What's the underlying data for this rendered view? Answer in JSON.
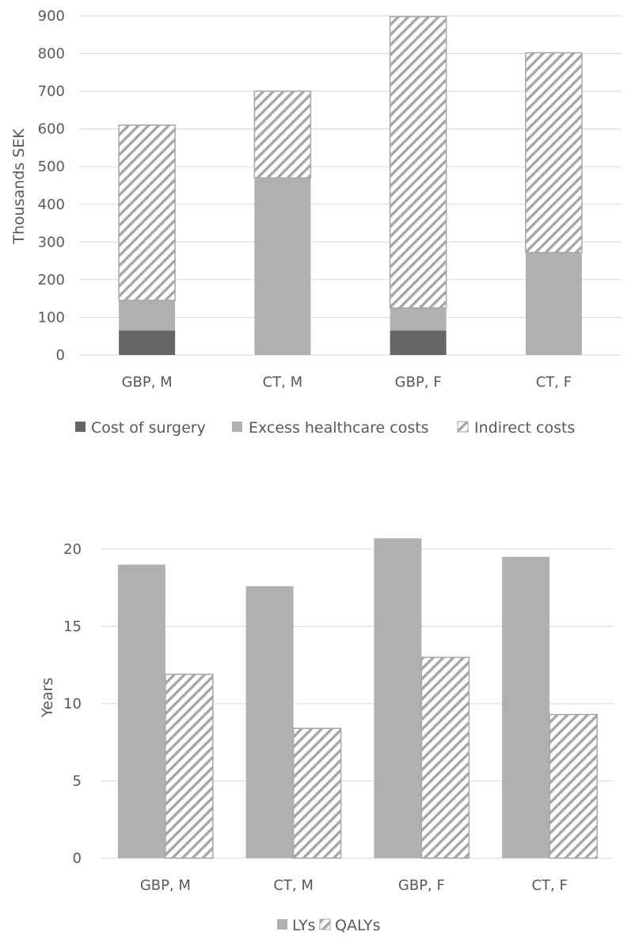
{
  "chart_data": [
    {
      "type": "bar",
      "stacked": true,
      "categories": [
        "GBP, M",
        "CT, M",
        "GBP, F",
        "CT, F"
      ],
      "series": [
        {
          "name": "Cost of surgery",
          "values": [
            65,
            0,
            65,
            0
          ],
          "color": "#666666",
          "pattern": "solid"
        },
        {
          "name": "Excess healthcare costs",
          "values": [
            80,
            470,
            60,
            272
          ],
          "color": "#b0b0b0",
          "pattern": "solid"
        },
        {
          "name": "Indirect costs",
          "values": [
            465,
            230,
            773,
            530
          ],
          "color": "#a6a6a6",
          "pattern": "diagonal-stripes"
        }
      ],
      "title": "",
      "xlabel": "",
      "ylabel": "Thousands SEK",
      "ylim": [
        0,
        900
      ],
      "yticks": [
        0,
        100,
        200,
        300,
        400,
        500,
        600,
        700,
        800,
        900
      ],
      "grid": true,
      "legend": "bottom"
    },
    {
      "type": "bar",
      "stacked": false,
      "categories": [
        "GBP, M",
        "CT, M",
        "GBP, F",
        "CT, F"
      ],
      "series": [
        {
          "name": "LYs",
          "values": [
            19.0,
            17.6,
            20.7,
            19.5
          ],
          "color": "#b0b0b0",
          "pattern": "solid"
        },
        {
          "name": "QALYs",
          "values": [
            11.9,
            8.4,
            13.0,
            9.3
          ],
          "color": "#a6a6a6",
          "pattern": "diagonal-stripes"
        }
      ],
      "title": "",
      "xlabel": "",
      "ylabel": "Years",
      "ylim": [
        0,
        22
      ],
      "yticks": [
        0,
        5,
        10,
        15,
        20
      ],
      "grid": true,
      "legend": "bottom"
    }
  ]
}
